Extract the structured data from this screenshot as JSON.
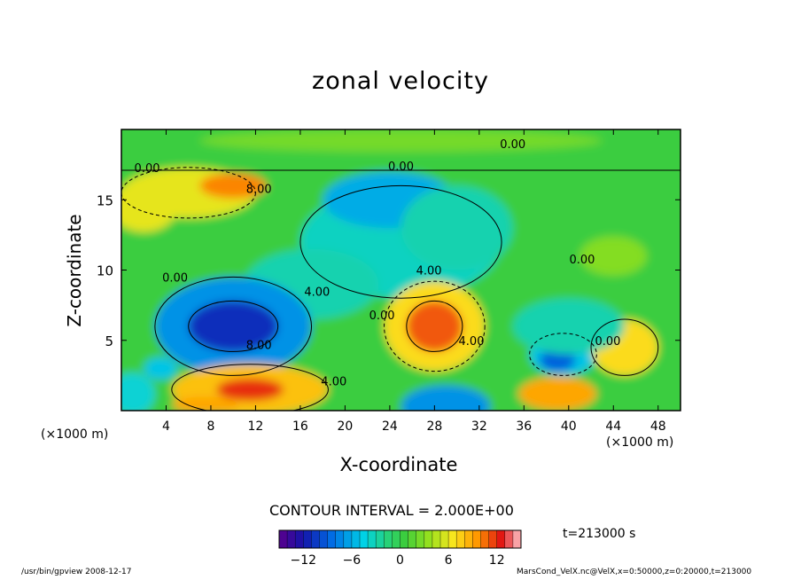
{
  "chart_data": {
    "type": "heatmap",
    "title": "zonal velocity",
    "xlabel": "X-coordinate",
    "ylabel": "Z-coordinate",
    "x_unit_label": "(×1000 m)",
    "xlim": [
      0,
      50
    ],
    "ylim": [
      0,
      20
    ],
    "x_ticks": [
      4,
      8,
      12,
      16,
      20,
      24,
      28,
      32,
      36,
      40,
      44,
      48
    ],
    "y_ticks": [
      5,
      10,
      15
    ],
    "contour_interval_text": "CONTOUR INTERVAL = 2.000E+00",
    "contour_labels": [
      {
        "text": "0.00",
        "x": 35,
        "z": 19.0
      },
      {
        "text": "0.00",
        "x": 2.3,
        "z": 17.3
      },
      {
        "text": "0.00",
        "x": 25,
        "z": 17.4
      },
      {
        "text": "8.00",
        "x": 12.3,
        "z": 15.8
      },
      {
        "text": "0.00",
        "x": 4.8,
        "z": 9.5
      },
      {
        "text": "0.00",
        "x": 41.2,
        "z": 10.8
      },
      {
        "text": "4.00",
        "x": 17.5,
        "z": 8.5
      },
      {
        "text": "4.00",
        "x": 27.5,
        "z": 10.0
      },
      {
        "text": "4.00",
        "x": 31.3,
        "z": 5.0
      },
      {
        "text": "0.00",
        "x": 23.3,
        "z": 6.8
      },
      {
        "text": "0.00",
        "x": 43.5,
        "z": 5.0
      },
      {
        "text": "8.00",
        "x": 12.3,
        "z": 4.7
      },
      {
        "text": "4.00",
        "x": 19.0,
        "z": 2.1
      }
    ],
    "colorbar": {
      "min": -15,
      "max": 15,
      "ticks": [
        -12,
        -6,
        0,
        6,
        12
      ],
      "tick_labels": [
        "−12",
        "−6",
        "0",
        "6",
        "12"
      ]
    },
    "colors": {
      "background_field": "#3fd24a",
      "positive_peak": "#e01818",
      "negative_peak": "#1010a0",
      "contour_line": "#000000"
    }
  },
  "time_label": "t=213000 s",
  "footer": {
    "left": "/usr/bin/gpview   2008-12-17",
    "right": "MarsCond_VelX.nc@VelX,x=0:50000,z=0:20000,t=213000"
  }
}
